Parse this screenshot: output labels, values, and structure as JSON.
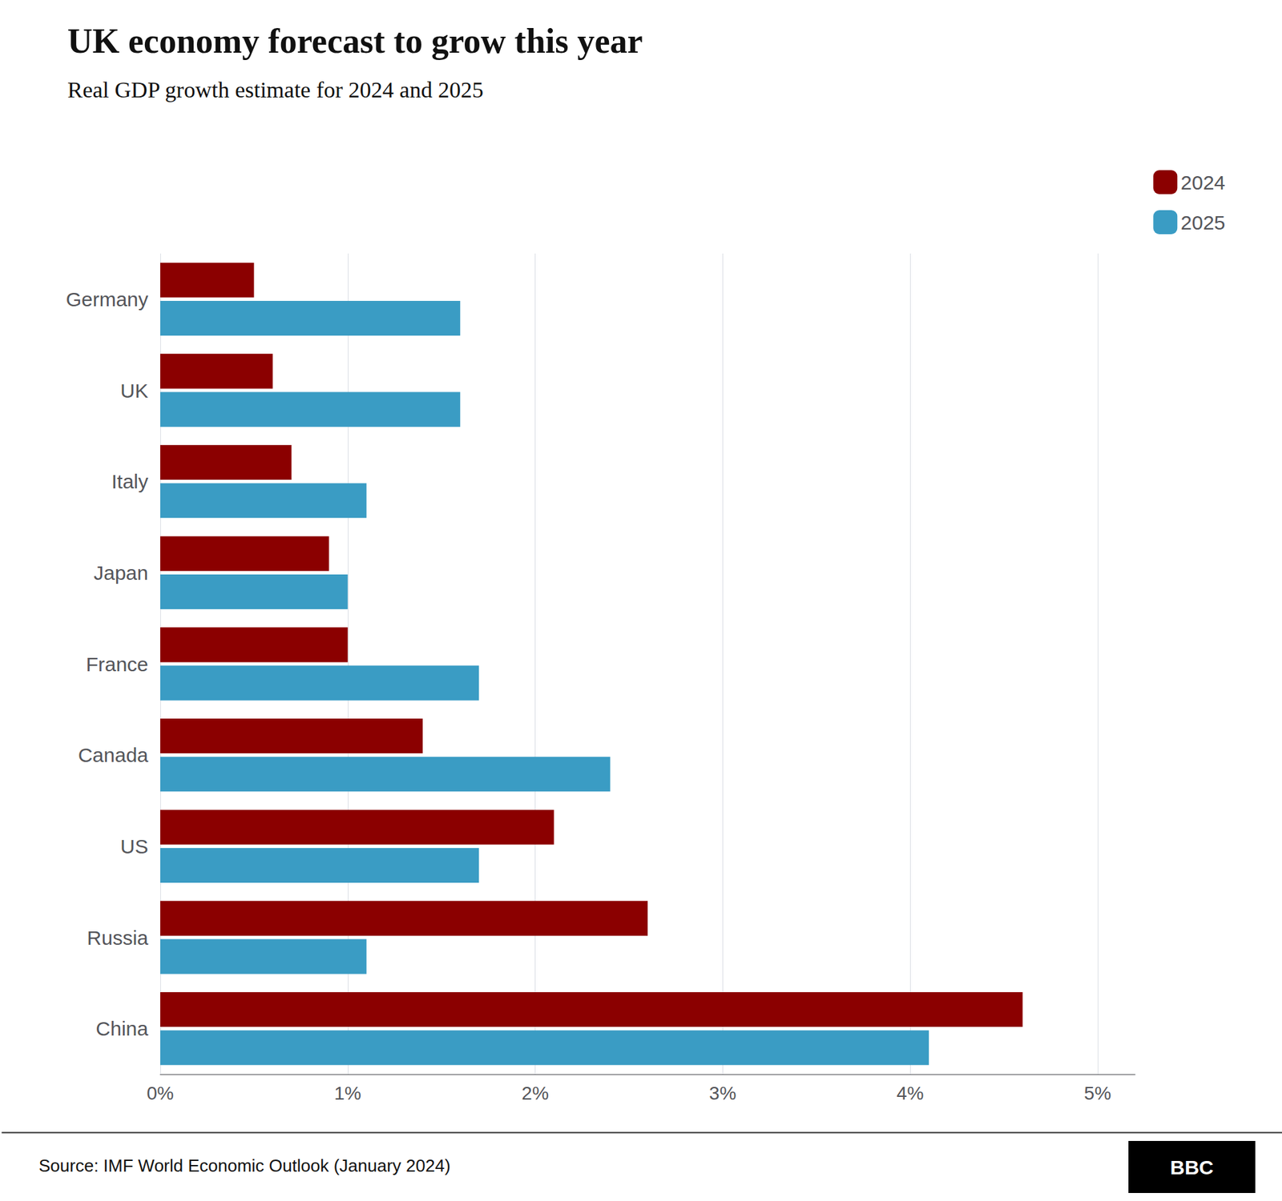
{
  "chart_data": {
    "type": "bar",
    "orientation": "horizontal",
    "title": "UK economy forecast to grow this year",
    "subtitle": "Real GDP growth estimate for 2024 and 2025",
    "annotations": [
      "Source: IMF World Economic Outlook (January 2024)",
      "BBC"
    ],
    "categories": [
      "Germany",
      "UK",
      "Italy",
      "Japan",
      "France",
      "Canada",
      "US",
      "Russia",
      "China"
    ],
    "series": [
      {
        "name": "2024",
        "color": "#8B0000",
        "values": [
          0.5,
          0.6,
          0.7,
          0.9,
          1.0,
          1.4,
          2.1,
          2.6,
          4.6
        ]
      },
      {
        "name": "2025",
        "color": "#3A9CC4",
        "values": [
          1.6,
          1.6,
          1.1,
          1.0,
          1.7,
          2.4,
          1.7,
          1.1,
          4.1
        ]
      }
    ],
    "xlim": [
      0,
      5.2
    ],
    "xticks": [
      {
        "value": 0,
        "label": "0%"
      },
      {
        "value": 1,
        "label": "1%"
      },
      {
        "value": 2,
        "label": "2%"
      },
      {
        "value": 3,
        "label": "3%"
      },
      {
        "value": 4,
        "label": "4%"
      },
      {
        "value": 5,
        "label": "5%"
      }
    ],
    "grid": true,
    "legend": "upper right"
  }
}
